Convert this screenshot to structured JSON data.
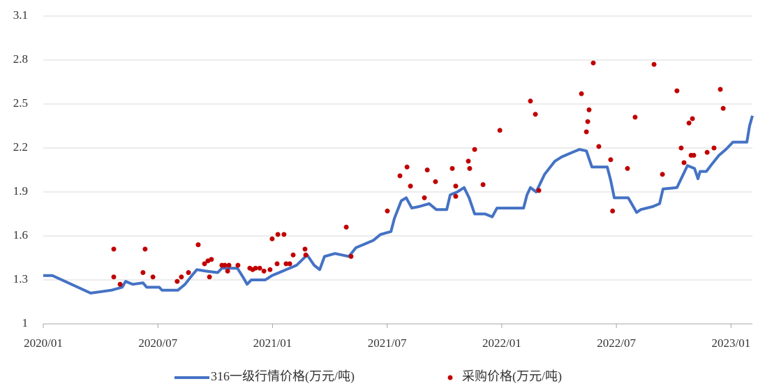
{
  "chart_data": {
    "type": "line",
    "ylim": [
      1,
      3.1
    ],
    "yticks": [
      1,
      1.3,
      1.6,
      1.9,
      2.2,
      2.5,
      2.8,
      3.1
    ],
    "xlim": [
      0,
      37.12
    ],
    "xticks": [
      {
        "value": 0,
        "label": "2020/01"
      },
      {
        "value": 6,
        "label": "2020/07"
      },
      {
        "value": 12,
        "label": "2021/01"
      },
      {
        "value": 18,
        "label": "2021/07"
      },
      {
        "value": 24,
        "label": "2022/01"
      },
      {
        "value": 30,
        "label": "2022/07"
      },
      {
        "value": 36,
        "label": "2023/01"
      }
    ],
    "grid": true,
    "legend": "bottom",
    "series": [
      {
        "name": "316一级行情价格(万元/吨)",
        "type": "line",
        "color": "#4472c4",
        "x": [
          0,
          0.47,
          2.48,
          3.03,
          3.58,
          4.13,
          4.31,
          4.68,
          5.22,
          5.41,
          6.07,
          6.21,
          7.05,
          7.42,
          7.78,
          8.04,
          8.51,
          9.13,
          9.35,
          10.16,
          10.45,
          10.67,
          10.89,
          11.62,
          11.98,
          12.35,
          12.71,
          13.26,
          13.81,
          14.18,
          14.47,
          14.72,
          15.27,
          16.0,
          16.37,
          16.92,
          17.28,
          17.65,
          18.2,
          18.38,
          18.74,
          19.0,
          19.29,
          19.66,
          20.2,
          20.57,
          21.12,
          21.3,
          21.67,
          22.03,
          22.29,
          22.58,
          23.13,
          23.5,
          23.75,
          25.14,
          25.32,
          25.5,
          25.8,
          26.24,
          26.78,
          27.15,
          27.69,
          28.06,
          28.43,
          28.72,
          29.52,
          29.7,
          29.89,
          30.62,
          31.06,
          31.28,
          31.9,
          32.26,
          32.44,
          33.17,
          33.72,
          34.09,
          34.27,
          34.38,
          34.71,
          35.0,
          35.37,
          35.73,
          36.1,
          36.83,
          36.97,
          37.12
        ],
        "values": [
          1.33,
          1.33,
          1.21,
          1.22,
          1.23,
          1.25,
          1.29,
          1.27,
          1.28,
          1.25,
          1.25,
          1.23,
          1.23,
          1.27,
          1.33,
          1.37,
          1.36,
          1.35,
          1.38,
          1.38,
          1.32,
          1.27,
          1.3,
          1.3,
          1.33,
          1.35,
          1.37,
          1.4,
          1.47,
          1.4,
          1.37,
          1.46,
          1.48,
          1.46,
          1.52,
          1.55,
          1.57,
          1.61,
          1.63,
          1.72,
          1.84,
          1.86,
          1.79,
          1.8,
          1.82,
          1.78,
          1.78,
          1.88,
          1.9,
          1.93,
          1.86,
          1.75,
          1.75,
          1.73,
          1.79,
          1.79,
          1.88,
          1.93,
          1.9,
          2.02,
          2.11,
          2.14,
          2.17,
          2.19,
          2.18,
          2.07,
          2.07,
          1.98,
          1.86,
          1.86,
          1.76,
          1.78,
          1.8,
          1.82,
          1.92,
          1.93,
          2.08,
          2.06,
          1.99,
          2.04,
          2.04,
          2.09,
          2.15,
          2.19,
          2.24,
          2.24,
          2.35,
          2.42
        ]
      },
      {
        "name": "采购价格(万元/吨)",
        "type": "scatter",
        "color": "#c00000",
        "x": [
          3.69,
          3.69,
          4.02,
          5.33,
          5.22,
          5.74,
          7.01,
          7.23,
          7.6,
          8.11,
          8.44,
          8.62,
          8.7,
          8.8,
          9.35,
          9.5,
          9.65,
          9.72,
          10.19,
          10.81,
          10.96,
          11.11,
          11.33,
          11.55,
          11.87,
          11.98,
          12.24,
          12.28,
          12.6,
          12.71,
          12.9,
          13.08,
          13.7,
          13.74,
          15.86,
          16.11,
          18.01,
          18.67,
          19.04,
          19.22,
          19.95,
          20.1,
          20.53,
          21.41,
          21.59,
          21.59,
          22.25,
          22.32,
          22.58,
          23.02,
          23.9,
          25.5,
          25.76,
          25.94,
          28.17,
          28.43,
          28.5,
          28.57,
          28.79,
          29.08,
          29.7,
          29.8,
          30.58,
          30.98,
          31.97,
          32.41,
          33.17,
          33.39,
          33.54,
          33.8,
          33.91,
          33.98,
          34.05,
          34.75,
          35.11,
          35.44,
          35.59
        ],
        "values": [
          1.51,
          1.32,
          1.27,
          1.51,
          1.35,
          1.32,
          1.29,
          1.32,
          1.35,
          1.54,
          1.41,
          1.43,
          1.32,
          1.44,
          1.4,
          1.4,
          1.36,
          1.4,
          1.4,
          1.38,
          1.37,
          1.38,
          1.38,
          1.36,
          1.37,
          1.58,
          1.41,
          1.61,
          1.61,
          1.41,
          1.41,
          1.47,
          1.51,
          1.47,
          1.66,
          1.46,
          1.77,
          2.01,
          2.07,
          1.94,
          1.86,
          2.05,
          1.97,
          2.06,
          1.94,
          1.87,
          2.11,
          2.06,
          2.19,
          1.95,
          2.32,
          2.52,
          2.43,
          1.91,
          2.57,
          2.31,
          2.38,
          2.46,
          2.78,
          2.21,
          2.12,
          1.77,
          2.06,
          2.41,
          2.77,
          2.02,
          2.59,
          2.2,
          2.1,
          2.37,
          2.15,
          2.4,
          2.15,
          2.17,
          2.2,
          2.6,
          2.47
        ]
      }
    ]
  }
}
